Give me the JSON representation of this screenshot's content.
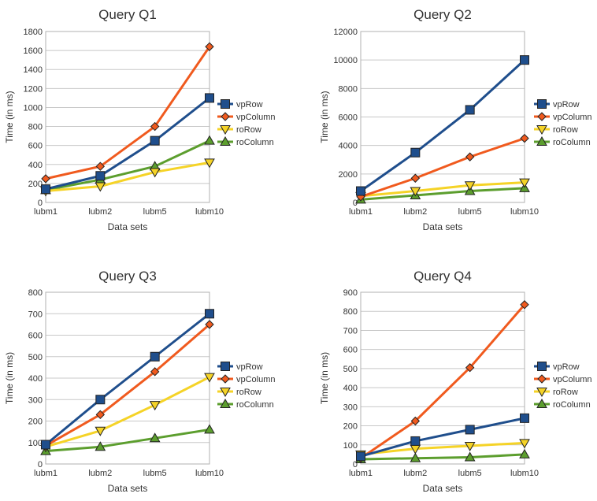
{
  "chart_data": [
    {
      "type": "line",
      "title": "Query Q1",
      "xlabel": "Data sets",
      "ylabel": "Time (in ms)",
      "categories": [
        "lubm1",
        "lubm2",
        "lubm5",
        "lubm10"
      ],
      "ylim": [
        0,
        1800
      ],
      "yticks": [
        0,
        200,
        400,
        600,
        800,
        1000,
        1200,
        1400,
        1600,
        1800
      ],
      "grid": true,
      "legend_position": "right",
      "series": [
        {
          "name": "vpRow",
          "values": [
            140,
            280,
            650,
            1100
          ]
        },
        {
          "name": "vpColumn",
          "values": [
            250,
            380,
            800,
            1640
          ]
        },
        {
          "name": "roRow",
          "values": [
            120,
            170,
            320,
            420
          ]
        },
        {
          "name": "roColumn",
          "values": [
            130,
            240,
            380,
            650
          ]
        }
      ]
    },
    {
      "type": "line",
      "title": "Query Q2",
      "xlabel": "Data sets",
      "ylabel": "Time (in ms)",
      "categories": [
        "lubm1",
        "lubm2",
        "lubm5",
        "lubm10"
      ],
      "ylim": [
        0,
        12000
      ],
      "yticks": [
        0,
        2000,
        4000,
        6000,
        8000,
        10000,
        12000
      ],
      "grid": true,
      "legend_position": "right",
      "series": [
        {
          "name": "vpRow",
          "values": [
            800,
            3500,
            6500,
            10000
          ]
        },
        {
          "name": "vpColumn",
          "values": [
            400,
            1700,
            3200,
            4500
          ]
        },
        {
          "name": "roRow",
          "values": [
            450,
            800,
            1200,
            1400
          ]
        },
        {
          "name": "roColumn",
          "values": [
            200,
            500,
            800,
            1000
          ]
        }
      ]
    },
    {
      "type": "line",
      "title": "Query Q3",
      "xlabel": "Data sets",
      "ylabel": "Time (in ms)",
      "categories": [
        "lubm1",
        "lubm2",
        "lubm5",
        "lubm10"
      ],
      "ylim": [
        0,
        800
      ],
      "yticks": [
        0,
        100,
        200,
        300,
        400,
        500,
        600,
        700,
        800
      ],
      "grid": true,
      "legend_position": "right",
      "series": [
        {
          "name": "vpRow",
          "values": [
            90,
            300,
            500,
            700
          ]
        },
        {
          "name": "vpColumn",
          "values": [
            85,
            230,
            430,
            650
          ]
        },
        {
          "name": "roRow",
          "values": [
            80,
            155,
            275,
            405
          ]
        },
        {
          "name": "roColumn",
          "values": [
            60,
            80,
            120,
            160
          ]
        }
      ]
    },
    {
      "type": "line",
      "title": "Query Q4",
      "xlabel": "Data sets",
      "ylabel": "Time (in ms)",
      "categories": [
        "lubm1",
        "lubm2",
        "lubm5",
        "lubm10"
      ],
      "ylim": [
        0,
        900
      ],
      "yticks": [
        0,
        100,
        200,
        300,
        400,
        500,
        600,
        700,
        800,
        900
      ],
      "grid": true,
      "legend_position": "right",
      "series": [
        {
          "name": "vpRow",
          "values": [
            40,
            120,
            180,
            240
          ]
        },
        {
          "name": "vpColumn",
          "values": [
            30,
            225,
            505,
            835
          ]
        },
        {
          "name": "roRow",
          "values": [
            50,
            80,
            95,
            110
          ]
        },
        {
          "name": "roColumn",
          "values": [
            25,
            30,
            35,
            50
          ]
        }
      ]
    }
  ],
  "styles": {
    "vpRow": {
      "color": "#1f4e8c",
      "marker": "square"
    },
    "vpColumn": {
      "color": "#f05a1e",
      "marker": "diamond"
    },
    "roRow": {
      "color": "#f5d327",
      "marker": "triangle-down"
    },
    "roColumn": {
      "color": "#5c9e2e",
      "marker": "triangle-up"
    },
    "marker_stroke": "#222222"
  }
}
